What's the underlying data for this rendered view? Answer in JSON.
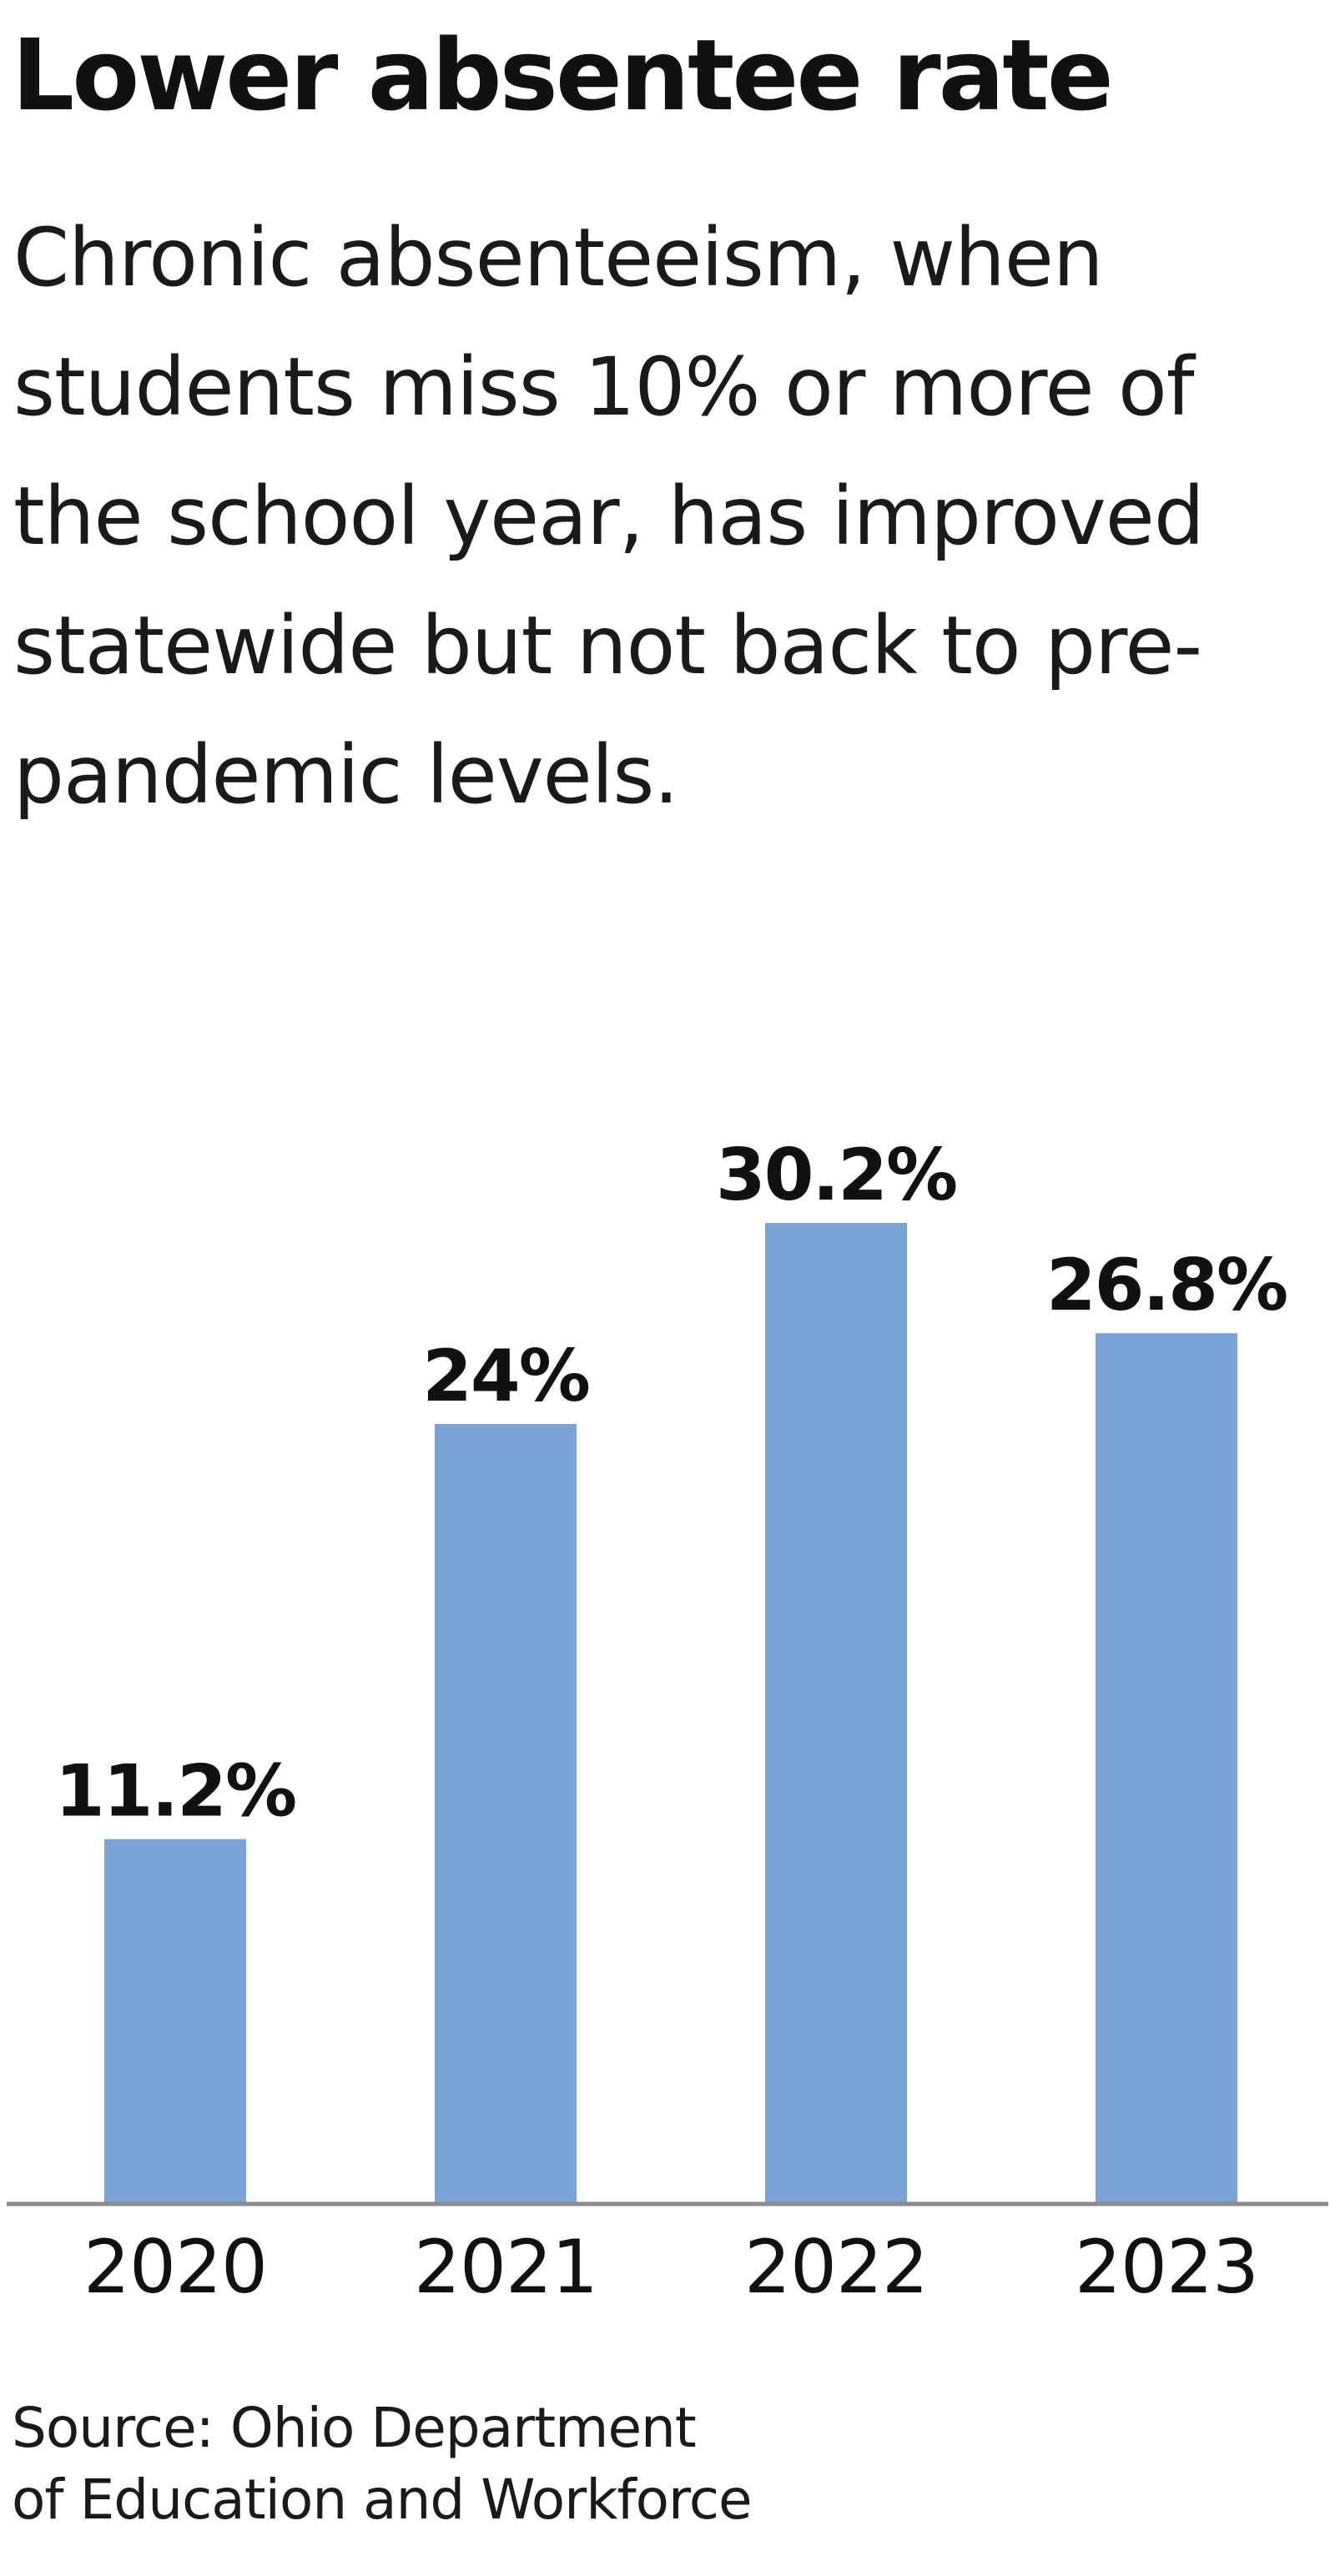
{
  "title": "Lower absentee rate",
  "subtitle": "Chronic absenteeism, when students miss 10% or more of the school year, has improved statewide but not back to pre-pandemic levels.",
  "source": {
    "line1": "Source: Ohio Department",
    "line2": "of Education and Workforce"
  },
  "colors": {
    "bar": "#7ba3d8",
    "axis": "#8a8a8a",
    "text": "#111111"
  },
  "chart_data": {
    "type": "bar",
    "categories": [
      "2020",
      "2021",
      "2022",
      "2023"
    ],
    "values": [
      11.2,
      24,
      30.2,
      26.8
    ],
    "labels": [
      "11.2%",
      "24%",
      "30.2%",
      "26.8%"
    ],
    "title": "Lower absentee rate",
    "xlabel": "",
    "ylabel": "",
    "ylim": [
      0,
      30.2
    ],
    "grid": false,
    "legend": "none"
  }
}
